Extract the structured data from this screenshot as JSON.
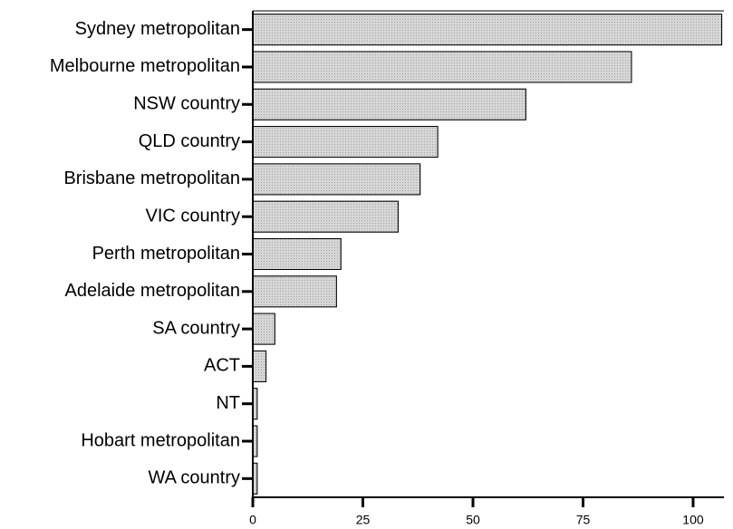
{
  "chart_data": {
    "type": "bar",
    "orientation": "horizontal",
    "categories": [
      "Sydney metropolitan",
      "Melbourne metropolitan",
      "NSW country",
      "QLD country",
      "Brisbane metropolitan",
      "VIC country",
      "Perth metropolitan",
      "Adelaide metropolitan",
      "SA country",
      "ACT",
      "NT",
      "Hobart metropolitan",
      "WA country"
    ],
    "values": [
      106.5,
      86,
      62,
      42,
      38,
      33,
      20,
      19,
      5,
      3,
      1,
      1,
      1
    ],
    "color": "#c8c8c8",
    "xlim": [
      0,
      107
    ],
    "xticks": [
      0,
      25,
      50,
      75,
      100
    ],
    "grid": false
  }
}
